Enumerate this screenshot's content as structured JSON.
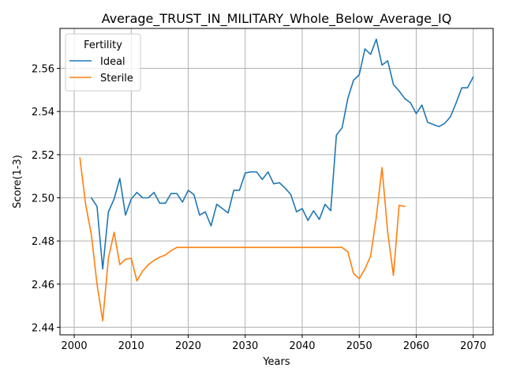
{
  "chart_data": {
    "type": "line",
    "title": "Average_TRUST_IN_MILITARY_Whole_Below_Average_IQ",
    "xlabel": "Years",
    "ylabel": "Score(1-3)",
    "xlim": [
      1997.5,
      2073.5
    ],
    "ylim": [
      2.4365,
      2.5785
    ],
    "xticks": [
      2000,
      2010,
      2020,
      2030,
      2040,
      2050,
      2060,
      2070
    ],
    "yticks": [
      2.44,
      2.46,
      2.48,
      2.5,
      2.52,
      2.54,
      2.56
    ],
    "ytick_labels": [
      "2.44",
      "2.46",
      "2.48",
      "2.50",
      "2.52",
      "2.54",
      "2.56"
    ],
    "grid": true,
    "legend": {
      "title": "Fertility",
      "placement": "top-left"
    },
    "series": [
      {
        "name": "Ideal",
        "color": "#1f77b4",
        "x": [
          2003,
          2004,
          2005,
          2006,
          2007,
          2008,
          2009,
          2010,
          2011,
          2012,
          2013,
          2014,
          2015,
          2016,
          2017,
          2018,
          2019,
          2020,
          2021,
          2022,
          2023,
          2024,
          2025,
          2026,
          2027,
          2028,
          2029,
          2030,
          2031,
          2032,
          2033,
          2034,
          2035,
          2036,
          2037,
          2038,
          2039,
          2040,
          2041,
          2042,
          2043,
          2044,
          2045,
          2046,
          2047,
          2048,
          2049,
          2050,
          2051,
          2052,
          2053,
          2054,
          2055,
          2056,
          2057,
          2058,
          2059,
          2060,
          2061,
          2062,
          2063,
          2064,
          2065,
          2066,
          2067,
          2068,
          2069,
          2070
        ],
        "values": [
          2.5,
          2.496,
          2.467,
          2.4935,
          2.4995,
          2.509,
          2.492,
          2.4995,
          2.5025,
          2.5,
          2.5,
          2.5025,
          2.4975,
          2.4975,
          2.502,
          2.502,
          2.498,
          2.5035,
          2.5015,
          2.492,
          2.4935,
          2.487,
          2.497,
          2.495,
          2.493,
          2.5035,
          2.5035,
          2.5115,
          2.512,
          2.512,
          2.5085,
          2.512,
          2.5065,
          2.507,
          2.5045,
          2.5015,
          2.4935,
          2.495,
          2.4895,
          2.494,
          2.49,
          2.497,
          2.494,
          2.529,
          2.5325,
          2.546,
          2.5545,
          2.557,
          2.569,
          2.5665,
          2.5735,
          2.5615,
          2.5635,
          2.5525,
          2.5495,
          2.546,
          2.544,
          2.539,
          2.543,
          2.535,
          2.534,
          2.533,
          2.5345,
          2.5375,
          2.544,
          2.551,
          2.551,
          2.556
        ]
      },
      {
        "name": "Sterile",
        "color": "#ff7f0e",
        "x": [
          2001,
          2002,
          2003,
          2004,
          2005,
          2006,
          2007,
          2008,
          2009,
          2010,
          2011,
          2012,
          2013,
          2014,
          2015,
          2016,
          2017,
          2018,
          2019,
          2020,
          2021,
          2022,
          2023,
          2024,
          2025,
          2026,
          2027,
          2028,
          2029,
          2030,
          2031,
          2032,
          2033,
          2034,
          2035,
          2036,
          2037,
          2038,
          2039,
          2040,
          2041,
          2042,
          2043,
          2044,
          2045,
          2046,
          2047,
          2048,
          2049,
          2050,
          2051,
          2052,
          2053,
          2054,
          2055,
          2056,
          2057,
          2058
        ],
        "values": [
          2.5185,
          2.497,
          2.483,
          2.46,
          2.443,
          2.472,
          2.484,
          2.469,
          2.4715,
          2.472,
          2.4615,
          2.466,
          2.469,
          2.471,
          2.4725,
          2.4735,
          2.4755,
          2.477,
          2.477,
          2.477,
          2.477,
          2.477,
          2.477,
          2.477,
          2.477,
          2.477,
          2.477,
          2.477,
          2.477,
          2.477,
          2.477,
          2.477,
          2.477,
          2.477,
          2.477,
          2.477,
          2.477,
          2.477,
          2.477,
          2.477,
          2.477,
          2.477,
          2.477,
          2.477,
          2.477,
          2.477,
          2.477,
          2.475,
          2.465,
          2.4625,
          2.467,
          2.473,
          2.491,
          2.514,
          2.484,
          2.464,
          2.4965,
          2.496
        ]
      }
    ]
  }
}
